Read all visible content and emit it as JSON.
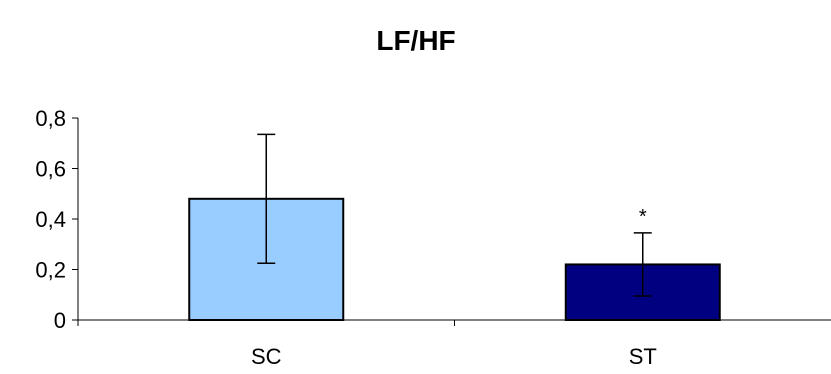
{
  "chart_data": {
    "type": "bar",
    "title": "LF/HF",
    "xlabel": "",
    "ylabel": "",
    "categories": [
      "SC",
      "ST"
    ],
    "values": [
      0.48,
      0.22
    ],
    "error": [
      0.255,
      0.125
    ],
    "annotations": [
      "",
      "*"
    ],
    "ylim": [
      0,
      0.8
    ],
    "yticks": [
      0,
      0.2,
      0.4,
      0.6,
      0.8
    ],
    "ytick_labels": [
      "0",
      "0,2",
      "0,4",
      "0,6",
      "0,8"
    ],
    "colors": [
      "#99CCFF",
      "#000080"
    ],
    "grid": false,
    "legend": "none"
  }
}
